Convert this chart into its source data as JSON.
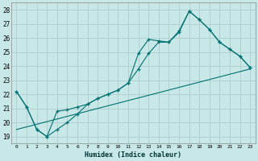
{
  "title": "",
  "xlabel": "Humidex (Indice chaleur)",
  "ylabel": "",
  "xlim": [
    -0.5,
    23.5
  ],
  "ylim": [
    18.5,
    28.5
  ],
  "yticks": [
    19,
    20,
    21,
    22,
    23,
    24,
    25,
    26,
    27,
    28
  ],
  "xticks": [
    0,
    1,
    2,
    3,
    4,
    5,
    6,
    7,
    8,
    9,
    10,
    11,
    12,
    13,
    14,
    15,
    16,
    17,
    18,
    19,
    20,
    21,
    22,
    23
  ],
  "bg_color": "#c8e8e8",
  "grid_color": "#b0d0d0",
  "line_color": "#007070",
  "line1_x": [
    0,
    1,
    2,
    3,
    4,
    5,
    6,
    7,
    8,
    9,
    10,
    11,
    12,
    13,
    14,
    15,
    16,
    17,
    18,
    19,
    20,
    21,
    22,
    23
  ],
  "line1_y": [
    22.2,
    21.1,
    19.5,
    19.0,
    20.8,
    20.9,
    21.1,
    21.3,
    21.7,
    22.0,
    22.3,
    22.8,
    24.9,
    25.9,
    25.8,
    25.7,
    26.5,
    27.9,
    27.3,
    26.6,
    25.7,
    25.2,
    24.7,
    23.9
  ],
  "line2_x": [
    0,
    1,
    2,
    3,
    4,
    5,
    6,
    7,
    8,
    9,
    10,
    11,
    12,
    13,
    14,
    15,
    16,
    17,
    18,
    19,
    20,
    21,
    22,
    23
  ],
  "line2_y": [
    22.2,
    21.1,
    19.5,
    19.0,
    19.5,
    20.0,
    20.6,
    21.3,
    21.7,
    22.0,
    22.3,
    22.8,
    23.8,
    24.9,
    25.7,
    25.7,
    26.4,
    27.9,
    27.3,
    26.6,
    25.7,
    25.2,
    24.7,
    23.9
  ],
  "line3_x": [
    0,
    23
  ],
  "line3_y": [
    19.5,
    23.8
  ]
}
